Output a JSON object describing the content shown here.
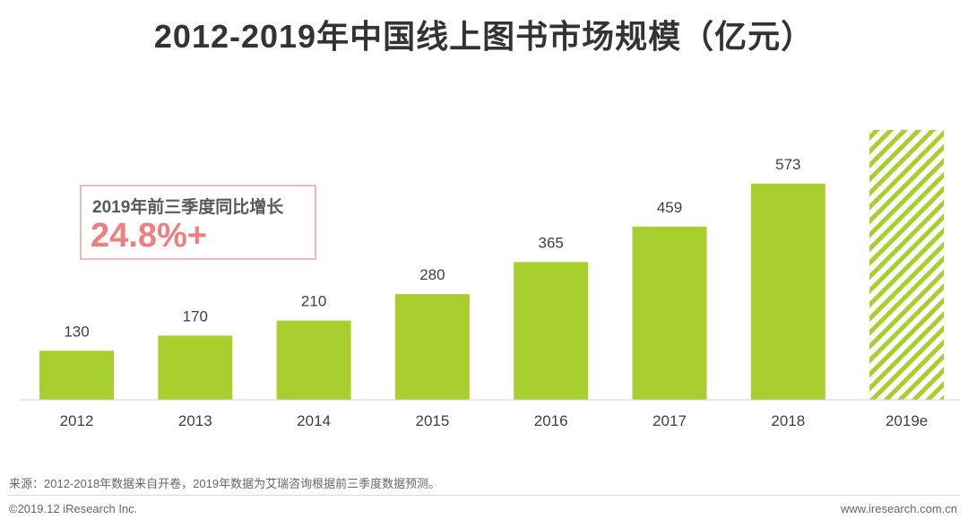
{
  "title": "2012-2019年中国线上图书市场规模（亿元）",
  "callout": {
    "label": "2019年前三季度同比增长",
    "value": "24.8%+"
  },
  "footer": {
    "source": "来源：2012-2018年数据来自开卷，2019年数据为艾瑞咨询根据前三季度数据预测。",
    "copyright": "©2019.12 iResearch Inc.",
    "website": "www.iresearch.com.cn"
  },
  "colors": {
    "bar": "#a9cf2f",
    "callout_value": "#ef7f7f",
    "callout_border": "#f1b8b5"
  },
  "chart_data": {
    "type": "bar",
    "title": "2012-2019年中国线上图书市场规模（亿元）",
    "categories": [
      "2012",
      "2013",
      "2014",
      "2015",
      "2016",
      "2017",
      "2018",
      "2019e"
    ],
    "values": [
      130,
      170,
      210,
      280,
      365,
      459,
      573,
      null
    ],
    "value_labels": [
      "130",
      "170",
      "210",
      "280",
      "365",
      "459",
      "573",
      ""
    ],
    "forecast": [
      false,
      false,
      false,
      false,
      false,
      false,
      false,
      true
    ],
    "forecast_estimate": 715,
    "ylim": [
      0,
      715
    ],
    "xlabel": "",
    "ylabel": "",
    "grid": false,
    "legend": "none"
  }
}
